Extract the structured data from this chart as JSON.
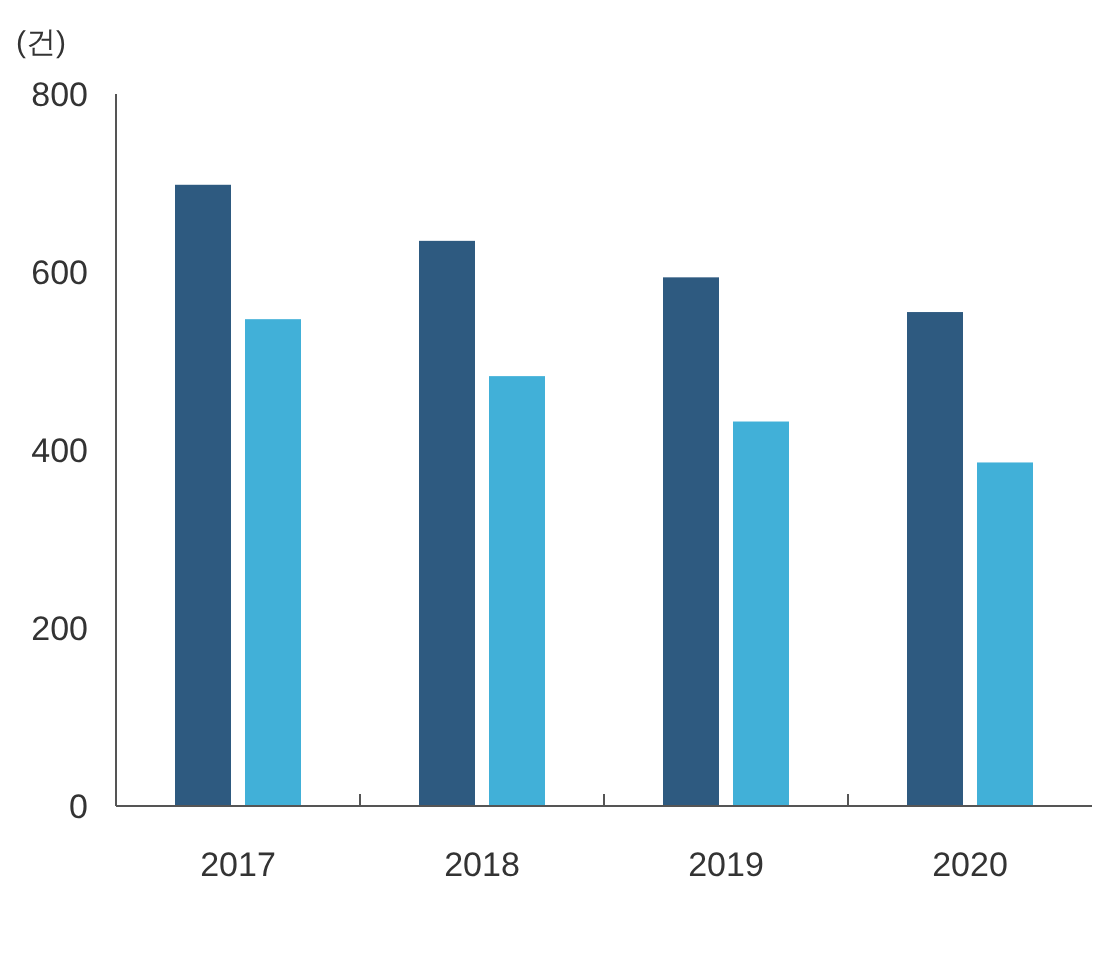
{
  "chart_data": {
    "type": "bar",
    "ylabel": "(건)",
    "categories": [
      "2017",
      "2018",
      "2019",
      "2020"
    ],
    "series": [
      {
        "color": "#2e5a80",
        "values": [
          698,
          635,
          594,
          555
        ]
      },
      {
        "color": "#41b0d8",
        "values": [
          547,
          483,
          432,
          386
        ]
      }
    ],
    "ylim": [
      0,
      800
    ],
    "yticks": [
      0,
      200,
      400,
      600,
      800
    ],
    "grid": false
  }
}
